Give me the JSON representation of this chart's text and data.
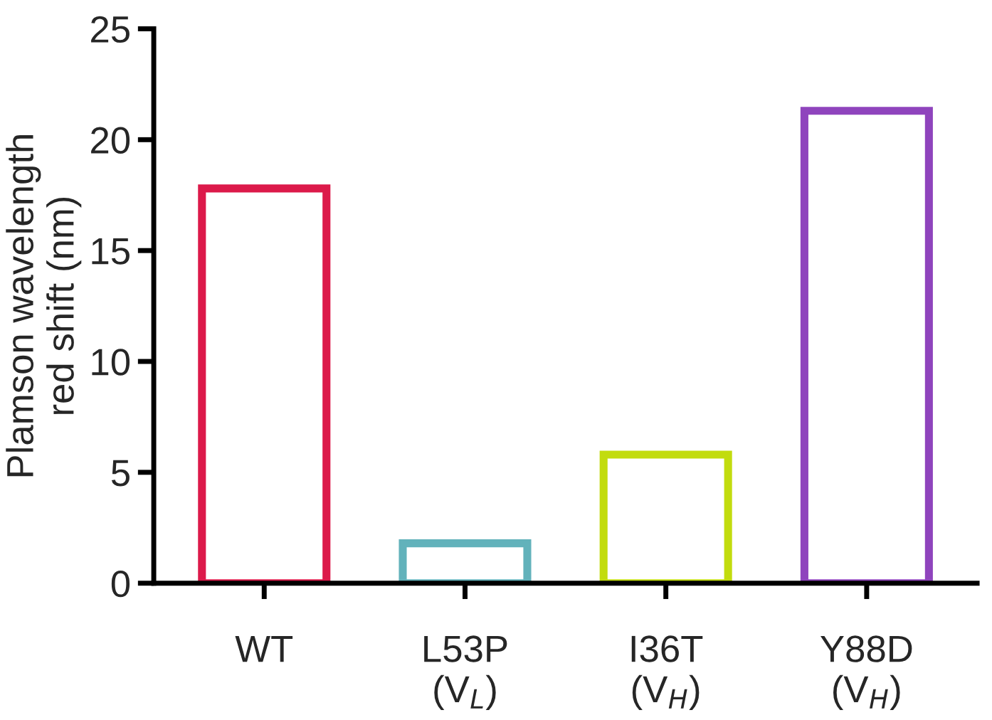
{
  "chart_data": {
    "type": "bar",
    "ylabel": "Plamson wavelength\nred shift (nm)",
    "categories": [
      "WT",
      "L53P\n(V$_{L}$)",
      "I36T\n(V$_{H}$)",
      "Y88D\n(V$_{H}$)"
    ],
    "values": [
      17.8,
      1.8,
      5.8,
      21.3
    ],
    "colors": [
      "#dc1a4a",
      "#62b2bb",
      "#c2dc0e",
      "#8f44bd"
    ],
    "ylim": [
      0,
      25
    ],
    "yticks": [
      0,
      5,
      10,
      15,
      20,
      25
    ],
    "grid": false
  }
}
